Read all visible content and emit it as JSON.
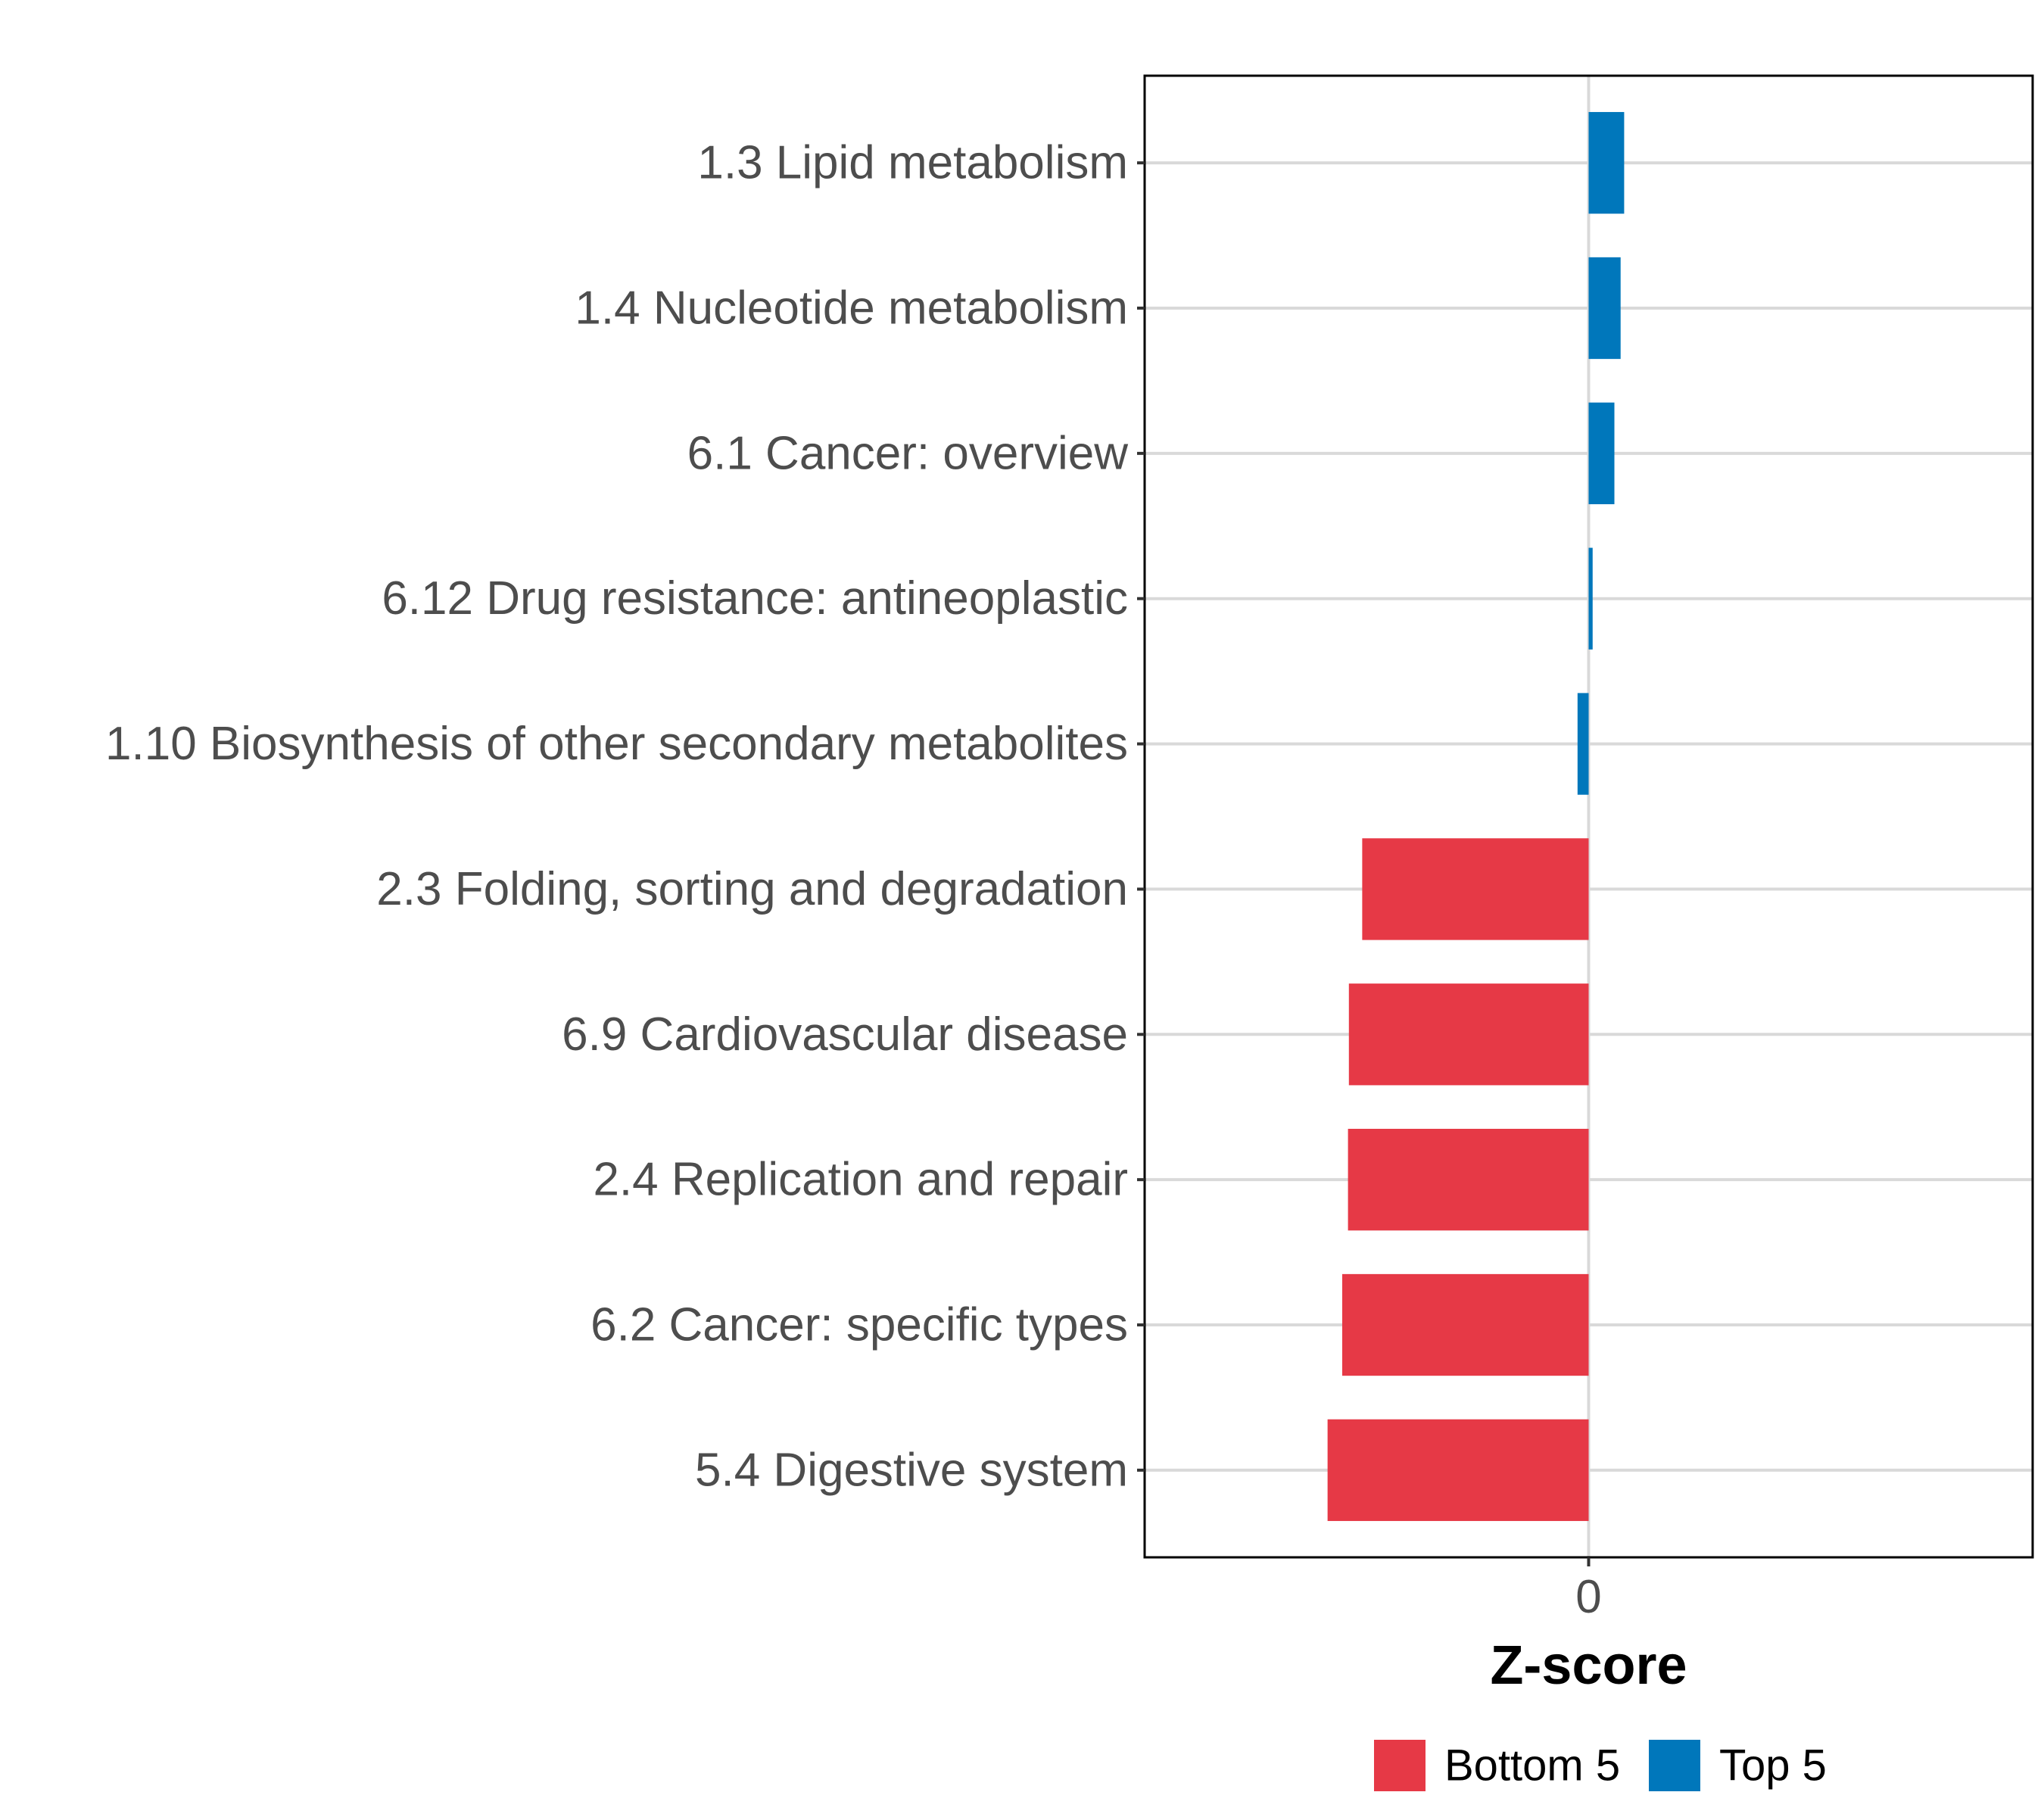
{
  "chart_data": {
    "type": "bar",
    "orientation": "horizontal",
    "title": "",
    "xlabel": "Z-score",
    "ylabel": "",
    "xlim": [
      -1.0,
      1.0
    ],
    "x_ticks": [
      0
    ],
    "x_tick_labels": [
      "0"
    ],
    "grid": true,
    "legend_position": "bottom",
    "categories": [
      "1.3 Lipid metabolism",
      "1.4 Nucleotide metabolism",
      "6.1 Cancer: overview",
      "6.12 Drug resistance: antineoplastic",
      "1.10 Biosynthesis of other secondary metabolites",
      "2.3 Folding, sorting and degradation",
      "6.9 Cardiovascular disease",
      "2.4 Replication and repair",
      "6.2 Cancer: specific types",
      "5.4 Digestive system"
    ],
    "values": [
      0.08,
      0.072,
      0.058,
      0.009,
      -0.025,
      -0.51,
      -0.54,
      -0.542,
      -0.555,
      -0.588
    ],
    "groups": [
      "Top 5",
      "Top 5",
      "Top 5",
      "Top 5",
      "Top 5",
      "Bottom 5",
      "Bottom 5",
      "Bottom 5",
      "Bottom 5",
      "Bottom 5"
    ],
    "legend": [
      {
        "name": "Bottom 5",
        "color": "#e63946"
      },
      {
        "name": "Top 5",
        "color": "#0077bb"
      }
    ]
  }
}
